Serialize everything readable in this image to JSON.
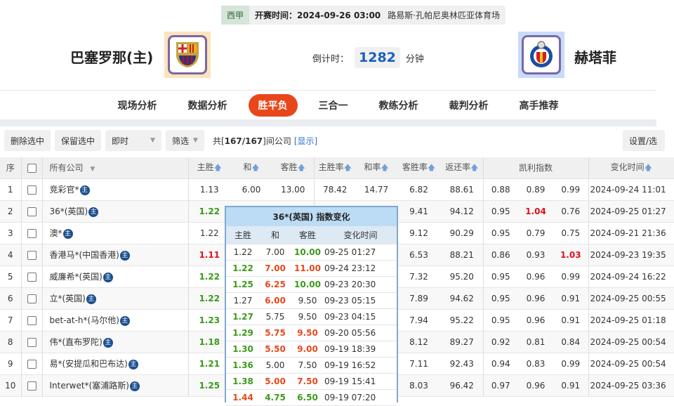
{
  "match": {
    "league": "西甲",
    "kickoff": "开赛时间：2024-09-26 03:00",
    "venue": "路易斯·孔帕尼奥林匹亚体育场",
    "home": "巴塞罗那(主)",
    "away": "赫塔菲",
    "countdown_label": "倒计时：",
    "countdown_value": "1282",
    "countdown_unit": "分钟"
  },
  "nav": [
    "现场分析",
    "数据分析",
    "胜平负",
    "三合一",
    "教练分析",
    "裁判分析",
    "高手推荐"
  ],
  "nav_active": 2,
  "toolbar": {
    "delete": "删除选中",
    "keep": "保留选中",
    "mode": "即时",
    "filter": "筛选",
    "count_prefix": "共[",
    "count": "167/167",
    "count_suffix": "]间公司",
    "show": "[显示]",
    "settings": "设置/选"
  },
  "columns": {
    "idx": "序",
    "company": "所有公司",
    "home": "主胜",
    "draw": "和",
    "away": "客胜",
    "home_rate": "主胜率",
    "draw_rate": "和率",
    "away_rate": "客胜率",
    "return_rate": "返还率",
    "kelly": "凯利指数",
    "time": "变化时间"
  },
  "rows": [
    {
      "i": "1",
      "c": "竞彩官*",
      "h": "1.13",
      "d": "6.00",
      "a": "13.00",
      "hr": "78.42",
      "dr": "14.77",
      "ar": "6.82",
      "rr": "88.61",
      "k": [
        "0.88",
        "0.89",
        "0.99"
      ],
      "t": "2024-09-24 11:01",
      "hc": ""
    },
    {
      "i": "2",
      "c": "36*(英国)",
      "h": "1.22",
      "d": "",
      "a": "",
      "hr": "",
      "dr": "",
      "ar": "9.41",
      "rr": "94.12",
      "k": [
        "0.95",
        "1.04",
        "0.76"
      ],
      "t": "2024-09-25 01:27",
      "hc": "g",
      "kr": 1
    },
    {
      "i": "3",
      "c": "澳*",
      "h": "1.22",
      "d": "",
      "a": "",
      "hr": "",
      "dr": "",
      "ar": "9.12",
      "rr": "90.29",
      "k": [
        "0.95",
        "0.79",
        "0.75"
      ],
      "t": "2024-09-21 21:36",
      "hc": ""
    },
    {
      "i": "4",
      "c": "香港马*(中国香港)",
      "h": "1.11",
      "d": "",
      "a": "",
      "hr": "",
      "dr": "",
      "ar": "6.53",
      "rr": "88.21",
      "k": [
        "0.86",
        "0.93",
        "1.03"
      ],
      "t": "2024-09-23 19:35",
      "hc": "r",
      "kr": 2
    },
    {
      "i": "5",
      "c": "威廉希*(英国)",
      "h": "1.22",
      "d": "",
      "a": "",
      "hr": "",
      "dr": "",
      "ar": "7.32",
      "rr": "95.20",
      "k": [
        "0.95",
        "0.96",
        "0.99"
      ],
      "t": "2024-09-24 16:22",
      "hc": "g"
    },
    {
      "i": "6",
      "c": "立*(英国)",
      "h": "1.22",
      "d": "",
      "a": "",
      "hr": "",
      "dr": "",
      "ar": "7.89",
      "rr": "94.62",
      "k": [
        "0.95",
        "0.96",
        "0.91"
      ],
      "t": "2024-09-25 00:55",
      "hc": "g"
    },
    {
      "i": "7",
      "c": "bet-at-h*(马尔他)",
      "h": "1.23",
      "d": "",
      "a": "",
      "hr": "",
      "dr": "",
      "ar": "7.94",
      "rr": "95.22",
      "k": [
        "0.95",
        "0.96",
        "0.91"
      ],
      "t": "2024-09-25 01:18",
      "hc": "g"
    },
    {
      "i": "8",
      "c": "伟*(直布罗陀)",
      "h": "1.18",
      "d": "",
      "a": "",
      "hr": "",
      "dr": "",
      "ar": "8.12",
      "rr": "89.27",
      "k": [
        "0.92",
        "0.81",
        "0.84"
      ],
      "t": "2024-09-25 00:54",
      "hc": "g"
    },
    {
      "i": "9",
      "c": "易*(安提瓜和巴布达)",
      "h": "1.21",
      "d": "",
      "a": "",
      "hr": "",
      "dr": "",
      "ar": "7.11",
      "rr": "92.43",
      "k": [
        "0.94",
        "0.83",
        "0.99"
      ],
      "t": "2024-09-25 00:54",
      "hc": "g"
    },
    {
      "i": "10",
      "c": "Interwet*(塞浦路斯)",
      "h": "1.25",
      "d": "",
      "a": "",
      "hr": "",
      "dr": "",
      "ar": "8.03",
      "rr": "96.42",
      "k": [
        "0.97",
        "0.96",
        "0.91"
      ],
      "t": "2024-09-25 03:36",
      "hc": "g"
    }
  ],
  "zhu_badge": "主",
  "popup": {
    "title": "36*(英国) 指数变化",
    "headers": [
      "主胜",
      "和",
      "客胜",
      "变化时间"
    ],
    "rows": [
      {
        "h": "1.22",
        "d": "7.00",
        "a": "10.00",
        "t": "09-25 01:27",
        "c": [
          "",
          "",
          "g"
        ]
      },
      {
        "h": "1.22",
        "d": "7.00",
        "a": "11.00",
        "t": "09-24 23:12",
        "c": [
          "g",
          "o",
          "o"
        ]
      },
      {
        "h": "1.25",
        "d": "6.25",
        "a": "10.00",
        "t": "09-23 20:30",
        "c": [
          "g",
          "o",
          "g"
        ]
      },
      {
        "h": "1.27",
        "d": "6.00",
        "a": "9.50",
        "t": "09-23 05:15",
        "c": [
          "",
          "o",
          ""
        ]
      },
      {
        "h": "1.27",
        "d": "5.75",
        "a": "9.50",
        "t": "09-23 04:15",
        "c": [
          "g",
          "",
          ""
        ]
      },
      {
        "h": "1.29",
        "d": "5.75",
        "a": "9.50",
        "t": "09-20 05:56",
        "c": [
          "g",
          "o",
          "o"
        ]
      },
      {
        "h": "1.30",
        "d": "5.50",
        "a": "9.00",
        "t": "09-19 18:39",
        "c": [
          "g",
          "o",
          "o"
        ]
      },
      {
        "h": "1.36",
        "d": "5.00",
        "a": "7.50",
        "t": "09-19 16:52",
        "c": [
          "g",
          "",
          ""
        ]
      },
      {
        "h": "1.38",
        "d": "5.00",
        "a": "7.50",
        "t": "09-19 15:41",
        "c": [
          "g",
          "o",
          "o"
        ]
      },
      {
        "h": "1.44",
        "d": "4.75",
        "a": "6.50",
        "t": "09-19 07:20",
        "c": [
          "o",
          "g",
          "g"
        ]
      }
    ]
  },
  "colors": {
    "accent": "#e8471b",
    "green": "#3a9a1a",
    "red": "#e0101b",
    "blue": "#1a5fc0"
  }
}
